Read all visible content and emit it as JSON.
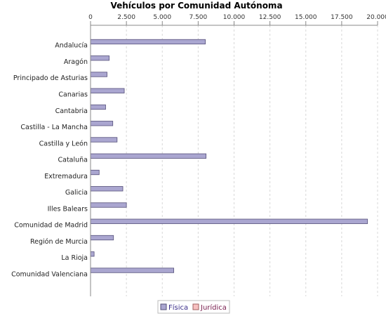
{
  "chart_data": {
    "type": "bar",
    "orientation": "horizontal",
    "title": "Vehículos por Comunidad Autónoma",
    "xlabel": "",
    "ylabel": "",
    "xlim": [
      0,
      20000
    ],
    "x_ticks": [
      "0",
      "2.500",
      "5.000",
      "7.500",
      "10.000",
      "12.500",
      "15.000",
      "17.500",
      "20.000"
    ],
    "x_tick_values": [
      0,
      2500,
      5000,
      7500,
      10000,
      12500,
      15000,
      17500,
      20000
    ],
    "x_axis_position": "top",
    "grid": true,
    "legend_position": "bottom",
    "categories": [
      "Andalucía",
      "Aragón",
      "Principado de Asturias",
      "Canarias",
      "Cantabria",
      "Castilla - La Mancha",
      "Castilla y León",
      "Cataluña",
      "Extremadura",
      "Galicia",
      "Illes Balears",
      "Comunidad de Madrid",
      "Región de Murcia",
      "La Rioja",
      "Comunidad Valenciana"
    ],
    "series": [
      {
        "name": "Física",
        "color": "#aaa6d0",
        "stroke": "#55507a",
        "values": [
          8000,
          1300,
          1150,
          2350,
          1050,
          1550,
          1850,
          8050,
          600,
          2250,
          2500,
          19300,
          1600,
          250,
          5800
        ]
      },
      {
        "name": "Jurídica",
        "color": "#f7c0c0",
        "stroke": "#a06060",
        "values": [
          0,
          0,
          0,
          0,
          0,
          0,
          0,
          0,
          0,
          0,
          0,
          0,
          0,
          0,
          0
        ]
      }
    ]
  }
}
